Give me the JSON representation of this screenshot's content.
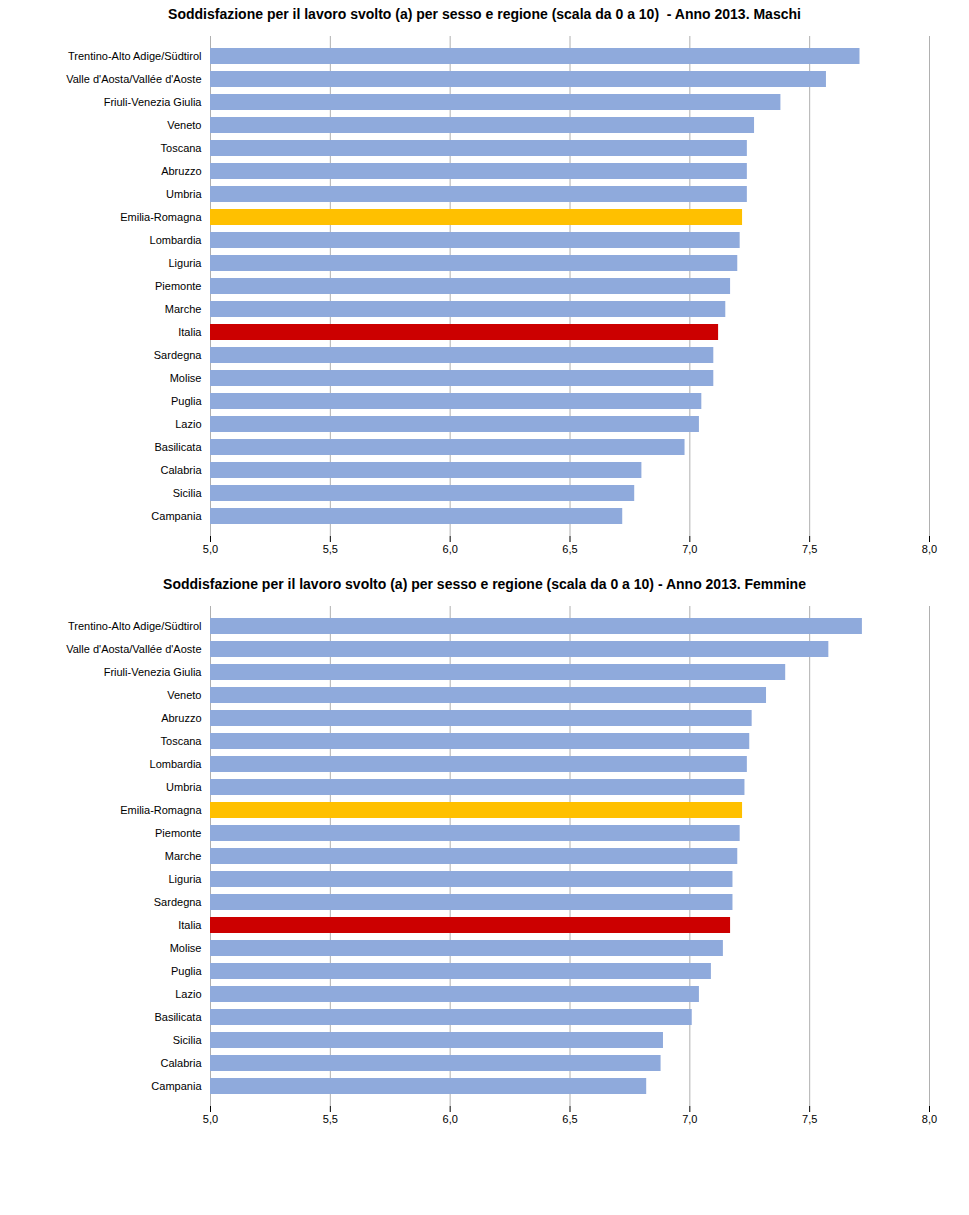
{
  "chart_data": [
    {
      "type": "bar",
      "orientation": "horizontal",
      "title": "Soddisfazione per il lavoro svolto (a) per sesso e regione (scala da 0 a 10)  - Anno 2013. Maschi",
      "categories": [
        "Trentino-Alto Adige/Südtirol",
        "Valle d'Aosta/Vallée d'Aoste",
        "Friuli-Venezia Giulia",
        "Veneto",
        "Toscana",
        "Abruzzo",
        "Umbria",
        "Emilia-Romagna",
        "Lombardia",
        "Liguria",
        "Piemonte",
        "Marche",
        "Italia",
        "Sardegna",
        "Molise",
        "Puglia",
        "Lazio",
        "Basilicata",
        "Calabria",
        "Sicilia",
        "Campania"
      ],
      "values": [
        7.71,
        7.57,
        7.38,
        7.27,
        7.24,
        7.24,
        7.24,
        7.22,
        7.21,
        7.2,
        7.17,
        7.15,
        7.12,
        7.1,
        7.1,
        7.05,
        7.04,
        6.98,
        6.8,
        6.77,
        6.72
      ],
      "colors": [
        "#8faadc",
        "#8faadc",
        "#8faadc",
        "#8faadc",
        "#8faadc",
        "#8faadc",
        "#8faadc",
        "#ffc000",
        "#8faadc",
        "#8faadc",
        "#8faadc",
        "#8faadc",
        "#cc0000",
        "#8faadc",
        "#8faadc",
        "#8faadc",
        "#8faadc",
        "#8faadc",
        "#8faadc",
        "#8faadc",
        "#8faadc"
      ],
      "xlim": [
        5.0,
        8.0
      ],
      "xticks": [
        {
          "value": 5.0,
          "label": "5,0"
        },
        {
          "value": 5.5,
          "label": "5,5"
        },
        {
          "value": 6.0,
          "label": "6,0"
        },
        {
          "value": 6.5,
          "label": "6,5"
        },
        {
          "value": 7.0,
          "label": "7,0"
        },
        {
          "value": 7.5,
          "label": "7,5"
        },
        {
          "value": 8.0,
          "label": "8,0"
        }
      ],
      "grid": true
    },
    {
      "type": "bar",
      "orientation": "horizontal",
      "title": "Soddisfazione per il lavoro svolto (a) per sesso e regione (scala da 0 a 10) - Anno 2013. Femmine",
      "categories": [
        "Trentino-Alto Adige/Südtirol",
        "Valle d'Aosta/Vallée d'Aoste",
        "Friuli-Venezia Giulia",
        "Veneto",
        "Abruzzo",
        "Toscana",
        "Lombardia",
        "Umbria",
        "Emilia-Romagna",
        "Piemonte",
        "Marche",
        "Liguria",
        "Sardegna",
        "Italia",
        "Molise",
        "Puglia",
        "Lazio",
        "Basilicata",
        "Sicilia",
        "Calabria",
        "Campania"
      ],
      "values": [
        7.72,
        7.58,
        7.4,
        7.32,
        7.26,
        7.25,
        7.24,
        7.23,
        7.22,
        7.21,
        7.2,
        7.18,
        7.18,
        7.17,
        7.14,
        7.09,
        7.04,
        7.01,
        6.89,
        6.88,
        6.82
      ],
      "colors": [
        "#8faadc",
        "#8faadc",
        "#8faadc",
        "#8faadc",
        "#8faadc",
        "#8faadc",
        "#8faadc",
        "#8faadc",
        "#ffc000",
        "#8faadc",
        "#8faadc",
        "#8faadc",
        "#8faadc",
        "#cc0000",
        "#8faadc",
        "#8faadc",
        "#8faadc",
        "#8faadc",
        "#8faadc",
        "#8faadc",
        "#8faadc"
      ],
      "xlim": [
        5.0,
        8.0
      ],
      "xticks": [
        {
          "value": 5.0,
          "label": "5,0"
        },
        {
          "value": 5.5,
          "label": "5,5"
        },
        {
          "value": 6.0,
          "label": "6,0"
        },
        {
          "value": 6.5,
          "label": "6,5"
        },
        {
          "value": 7.0,
          "label": "7,0"
        },
        {
          "value": 7.5,
          "label": "7,5"
        },
        {
          "value": 8.0,
          "label": "8,0"
        }
      ],
      "grid": true
    }
  ]
}
